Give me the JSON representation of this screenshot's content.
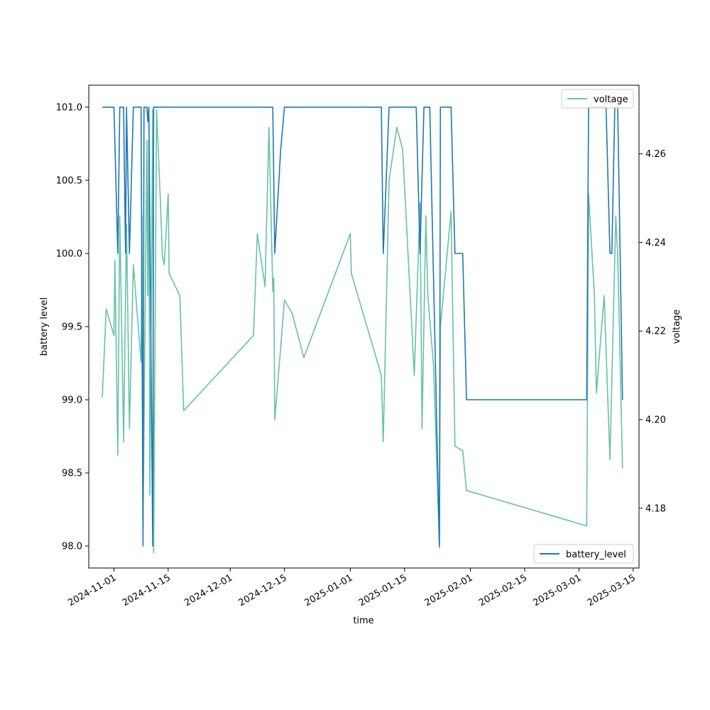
{
  "chart_data": {
    "type": "line",
    "title": "",
    "xlabel": "time",
    "ylabel": "battery level",
    "y2label": "voltage",
    "xlim": [
      "2024-10-25T12:00",
      "2025-03-16T12:00"
    ],
    "ylim": [
      97.85,
      101.15
    ],
    "y2lim": [
      4.1665,
      4.2755
    ],
    "x_ticks": [
      "2024-11-01",
      "2024-11-15",
      "2024-12-01",
      "2024-12-15",
      "2025-01-01",
      "2025-01-15",
      "2025-02-01",
      "2025-02-15",
      "2025-03-01",
      "2025-03-15"
    ],
    "y_ticks": [
      "98.0",
      "98.5",
      "99.0",
      "99.5",
      "100.0",
      "100.5",
      "101.0"
    ],
    "y2_ticks": [
      "4.18",
      "4.20",
      "4.22",
      "4.24",
      "4.26"
    ],
    "grid": false,
    "series": [
      {
        "name": "battery_level",
        "axis": "left",
        "color": "#1f77b4",
        "legend_position": "lower-right",
        "points": [
          [
            "2024-10-29T00:00",
            101
          ],
          [
            "2024-10-30T00:00",
            101
          ],
          [
            "2024-10-31T00:00",
            101
          ],
          [
            "2024-11-01T00:00",
            101
          ],
          [
            "2024-11-02T00:00",
            100
          ],
          [
            "2024-11-02T12:00",
            101
          ],
          [
            "2024-11-03T12:00",
            101
          ],
          [
            "2024-11-04T00:00",
            100
          ],
          [
            "2024-11-04T06:00",
            101
          ],
          [
            "2024-11-05T00:00",
            100
          ],
          [
            "2024-11-06T00:00",
            101
          ],
          [
            "2024-11-08T00:00",
            101
          ],
          [
            "2024-11-08T12:00",
            98
          ],
          [
            "2024-11-08T18:00",
            101
          ],
          [
            "2024-11-09T12:00",
            101
          ],
          [
            "2024-11-09T18:00",
            100.9
          ],
          [
            "2024-11-10T00:00",
            101
          ],
          [
            "2024-11-11T00:00",
            98
          ],
          [
            "2024-11-11T06:00",
            101
          ],
          [
            "2024-11-13T00:00",
            101
          ],
          [
            "2024-11-20T00:00",
            101
          ],
          [
            "2024-12-01T00:00",
            101
          ],
          [
            "2024-12-08T00:00",
            101
          ],
          [
            "2024-12-12T00:00",
            101
          ],
          [
            "2024-12-12T12:00",
            100
          ],
          [
            "2024-12-14T00:00",
            100.7
          ],
          [
            "2024-12-15T00:00",
            101
          ],
          [
            "2024-12-22T00:00",
            101
          ],
          [
            "2025-01-01T00:00",
            101
          ],
          [
            "2025-01-09T00:00",
            101
          ],
          [
            "2025-01-09T12:00",
            100
          ],
          [
            "2025-01-11T00:00",
            101
          ],
          [
            "2025-01-15T00:00",
            101
          ],
          [
            "2025-01-18T00:00",
            101
          ],
          [
            "2025-01-19T00:00",
            100
          ],
          [
            "2025-01-20T00:00",
            101
          ],
          [
            "2025-01-21T12:00",
            101
          ],
          [
            "2025-01-24T00:00",
            98
          ],
          [
            "2025-01-24T06:00",
            101
          ],
          [
            "2025-01-27T00:00",
            101
          ],
          [
            "2025-01-28T00:00",
            100
          ],
          [
            "2025-01-30T00:00",
            100
          ],
          [
            "2025-01-31T00:00",
            99
          ],
          [
            "2025-02-15T00:00",
            99
          ],
          [
            "2025-03-03T00:00",
            99
          ],
          [
            "2025-03-03T12:00",
            101
          ],
          [
            "2025-03-06T00:00",
            101
          ],
          [
            "2025-03-08T00:00",
            101
          ],
          [
            "2025-03-09T00:00",
            100
          ],
          [
            "2025-03-09T12:00",
            100
          ],
          [
            "2025-03-10T06:00",
            101
          ],
          [
            "2025-03-11T00:00",
            101
          ],
          [
            "2025-03-12T06:00",
            99
          ]
        ]
      },
      {
        "name": "voltage",
        "axis": "right",
        "color": "#66c2a5",
        "legend_position": "upper-right",
        "points": [
          [
            "2024-10-29T00:00",
            4.205
          ],
          [
            "2024-10-30T00:00",
            4.225
          ],
          [
            "2024-10-31T00:00",
            4.222
          ],
          [
            "2024-11-01T00:00",
            4.219
          ],
          [
            "2024-11-01T06:00",
            4.236
          ],
          [
            "2024-11-02T00:00",
            4.192
          ],
          [
            "2024-11-02T12:00",
            4.246
          ],
          [
            "2024-11-03T12:00",
            4.195
          ],
          [
            "2024-11-04T06:00",
            4.244
          ],
          [
            "2024-11-05T00:00",
            4.198
          ],
          [
            "2024-11-06T00:00",
            4.235
          ],
          [
            "2024-11-08T00:00",
            4.213
          ],
          [
            "2024-11-08T06:00",
            4.246
          ],
          [
            "2024-11-08T12:00",
            4.175
          ],
          [
            "2024-11-09T12:00",
            4.263
          ],
          [
            "2024-11-09T18:00",
            4.228
          ],
          [
            "2024-11-10T00:00",
            4.263
          ],
          [
            "2024-11-10T06:00",
            4.183
          ],
          [
            "2024-11-11T00:00",
            4.27
          ],
          [
            "2024-11-11T06:00",
            4.17
          ],
          [
            "2024-11-12T00:00",
            4.27
          ],
          [
            "2024-11-13T00:00",
            4.249
          ],
          [
            "2024-11-13T12:00",
            4.237
          ],
          [
            "2024-11-14T00:00",
            4.235
          ],
          [
            "2024-11-15T00:00",
            4.251
          ],
          [
            "2024-11-15T06:00",
            4.233
          ],
          [
            "2024-11-18T00:00",
            4.228
          ],
          [
            "2024-11-19T00:00",
            4.202
          ],
          [
            "2024-12-07T00:00",
            4.219
          ],
          [
            "2024-12-08T00:00",
            4.242
          ],
          [
            "2024-12-10T00:00",
            4.23
          ],
          [
            "2024-12-11T00:00",
            4.266
          ],
          [
            "2024-12-12T00:00",
            4.229
          ],
          [
            "2024-12-12T06:00",
            4.232
          ],
          [
            "2024-12-12T12:00",
            4.2
          ],
          [
            "2024-12-14T00:00",
            4.216
          ],
          [
            "2024-12-15T00:00",
            4.227
          ],
          [
            "2024-12-17T00:00",
            4.224
          ],
          [
            "2024-12-20T00:00",
            4.214
          ],
          [
            "2025-01-01T00:00",
            4.242
          ],
          [
            "2025-01-01T06:00",
            4.233
          ],
          [
            "2025-01-09T00:00",
            4.21
          ],
          [
            "2025-01-09T12:00",
            4.195
          ],
          [
            "2025-01-11T00:00",
            4.254
          ],
          [
            "2025-01-13T00:00",
            4.266
          ],
          [
            "2025-01-14T12:00",
            4.261
          ],
          [
            "2025-01-17T12:00",
            4.21
          ],
          [
            "2025-01-19T00:00",
            4.249
          ],
          [
            "2025-01-19T12:00",
            4.198
          ],
          [
            "2025-01-20T12:00",
            4.246
          ],
          [
            "2025-01-21T00:00",
            4.228
          ],
          [
            "2025-01-22T12:00",
            4.212
          ],
          [
            "2025-01-24T00:00",
            4.171
          ],
          [
            "2025-01-24T06:00",
            4.221
          ],
          [
            "2025-01-27T00:00",
            4.247
          ],
          [
            "2025-01-28T00:00",
            4.194
          ],
          [
            "2025-01-30T00:00",
            4.193
          ],
          [
            "2025-01-31T00:00",
            4.184
          ],
          [
            "2025-03-03T00:00",
            4.176
          ],
          [
            "2025-03-03T12:00",
            4.251
          ],
          [
            "2025-03-05T00:00",
            4.228
          ],
          [
            "2025-03-05T12:00",
            4.206
          ],
          [
            "2025-03-07T12:00",
            4.228
          ],
          [
            "2025-03-09T00:00",
            4.191
          ],
          [
            "2025-03-10T12:00",
            4.246
          ],
          [
            "2025-03-11T00:00",
            4.237
          ],
          [
            "2025-03-12T06:00",
            4.189
          ]
        ]
      }
    ]
  }
}
